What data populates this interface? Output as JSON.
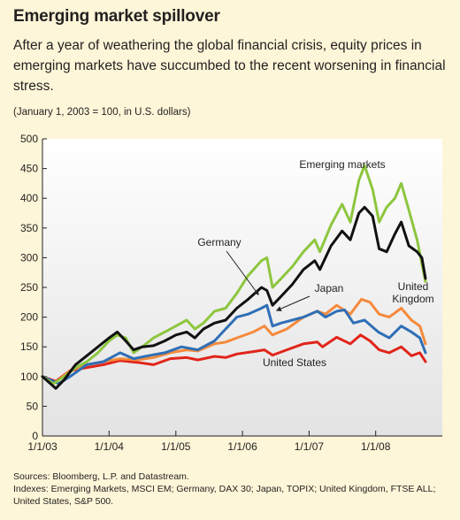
{
  "header": {
    "title": "Emerging market spillover",
    "subtitle": "After a year of weathering the global financial crisis, equity prices in emerging  markets have succumbed to the recent worsening in financial stress.",
    "unit_note": "(January 1, 2003 = 100, in U.S. dollars)"
  },
  "footer": {
    "sources": "Sources: Bloomberg, L.P. and Datastream.",
    "indexes": "Indexes: Emerging Markets, MSCI EM; Germany, DAX 30; Japan, TOPIX; United Kingdom, FTSE ALL; United States, S&P 500."
  },
  "colors": {
    "background": "#fdf6d8",
    "plot_background": "#e3e3e3",
    "emerging": "#8dc63f",
    "germany": "#111111",
    "japan": "#2f6fb6",
    "uk": "#f58a3c",
    "us": "#e1251b"
  },
  "chart_data": {
    "type": "line",
    "title": "Emerging market spillover",
    "xlabel": "",
    "ylabel": "",
    "ylim": [
      0,
      500
    ],
    "yticks": [
      0,
      50,
      100,
      150,
      200,
      250,
      300,
      350,
      400,
      450,
      500
    ],
    "xlim": [
      "2003-01-01",
      "2008-09-30"
    ],
    "xticks": [
      "1/1/03",
      "1/1/04",
      "1/1/05",
      "1/1/06",
      "1/1/07",
      "1/1/08"
    ],
    "grid": false,
    "legend": "inline labels",
    "series": [
      {
        "name": "Emerging markets",
        "label_lines": [
          "Emerging markets"
        ],
        "color_key": "emerging",
        "points": [
          [
            "2003-01-01",
            100
          ],
          [
            "2003-03-01",
            88
          ],
          [
            "2003-05-01",
            100
          ],
          [
            "2003-07-01",
            115
          ],
          [
            "2003-09-01",
            125
          ],
          [
            "2003-11-01",
            140
          ],
          [
            "2004-01-01",
            160
          ],
          [
            "2004-02-15",
            170
          ],
          [
            "2004-04-01",
            165
          ],
          [
            "2004-05-15",
            140
          ],
          [
            "2004-07-01",
            150
          ],
          [
            "2004-09-01",
            165
          ],
          [
            "2004-11-01",
            175
          ],
          [
            "2005-01-01",
            185
          ],
          [
            "2005-03-01",
            195
          ],
          [
            "2005-04-15",
            180
          ],
          [
            "2005-06-01",
            190
          ],
          [
            "2005-08-01",
            210
          ],
          [
            "2005-10-01",
            215
          ],
          [
            "2005-12-01",
            240
          ],
          [
            "2006-02-01",
            270
          ],
          [
            "2006-04-15",
            295
          ],
          [
            "2006-05-15",
            300
          ],
          [
            "2006-06-15",
            250
          ],
          [
            "2006-08-01",
            265
          ],
          [
            "2006-10-01",
            285
          ],
          [
            "2006-12-01",
            310
          ],
          [
            "2007-02-01",
            330
          ],
          [
            "2007-03-01",
            310
          ],
          [
            "2007-05-01",
            355
          ],
          [
            "2007-07-01",
            390
          ],
          [
            "2007-08-15",
            360
          ],
          [
            "2007-10-01",
            430
          ],
          [
            "2007-11-01",
            455
          ],
          [
            "2007-12-15",
            415
          ],
          [
            "2008-01-20",
            360
          ],
          [
            "2008-03-01",
            385
          ],
          [
            "2008-04-15",
            400
          ],
          [
            "2008-05-20",
            425
          ],
          [
            "2008-07-01",
            380
          ],
          [
            "2008-08-15",
            330
          ],
          [
            "2008-09-10",
            290
          ],
          [
            "2008-09-30",
            260
          ]
        ]
      },
      {
        "name": "Germany",
        "label_lines": [
          "Germany"
        ],
        "color_key": "germany",
        "points": [
          [
            "2003-01-01",
            100
          ],
          [
            "2003-03-15",
            80
          ],
          [
            "2003-05-01",
            95
          ],
          [
            "2003-07-01",
            120
          ],
          [
            "2003-09-01",
            135
          ],
          [
            "2003-11-01",
            150
          ],
          [
            "2004-01-01",
            165
          ],
          [
            "2004-02-15",
            175
          ],
          [
            "2004-04-01",
            160
          ],
          [
            "2004-05-15",
            145
          ],
          [
            "2004-07-01",
            150
          ],
          [
            "2004-09-01",
            152
          ],
          [
            "2004-11-01",
            160
          ],
          [
            "2005-01-01",
            170
          ],
          [
            "2005-03-01",
            175
          ],
          [
            "2005-04-15",
            165
          ],
          [
            "2005-06-01",
            180
          ],
          [
            "2005-08-01",
            190
          ],
          [
            "2005-10-01",
            195
          ],
          [
            "2005-12-01",
            215
          ],
          [
            "2006-02-01",
            230
          ],
          [
            "2006-04-15",
            250
          ],
          [
            "2006-05-15",
            245
          ],
          [
            "2006-06-15",
            220
          ],
          [
            "2006-08-01",
            235
          ],
          [
            "2006-10-01",
            255
          ],
          [
            "2006-12-01",
            280
          ],
          [
            "2007-02-01",
            295
          ],
          [
            "2007-03-01",
            280
          ],
          [
            "2007-05-01",
            320
          ],
          [
            "2007-07-01",
            345
          ],
          [
            "2007-08-15",
            330
          ],
          [
            "2007-10-01",
            375
          ],
          [
            "2007-11-01",
            385
          ],
          [
            "2007-12-15",
            370
          ],
          [
            "2008-01-20",
            315
          ],
          [
            "2008-03-01",
            310
          ],
          [
            "2008-04-15",
            340
          ],
          [
            "2008-05-20",
            360
          ],
          [
            "2008-07-01",
            320
          ],
          [
            "2008-08-15",
            310
          ],
          [
            "2008-09-10",
            300
          ],
          [
            "2008-09-30",
            265
          ]
        ]
      },
      {
        "name": "Japan",
        "label_lines": [
          "Japan"
        ],
        "color_key": "japan",
        "points": [
          [
            "2003-01-01",
            100
          ],
          [
            "2003-04-01",
            88
          ],
          [
            "2003-06-01",
            100
          ],
          [
            "2003-09-01",
            120
          ],
          [
            "2003-12-01",
            125
          ],
          [
            "2004-03-01",
            140
          ],
          [
            "2004-05-15",
            130
          ],
          [
            "2004-08-01",
            135
          ],
          [
            "2004-11-01",
            140
          ],
          [
            "2005-02-01",
            150
          ],
          [
            "2005-05-01",
            145
          ],
          [
            "2005-08-01",
            160
          ],
          [
            "2005-10-01",
            180
          ],
          [
            "2005-12-01",
            200
          ],
          [
            "2006-02-01",
            205
          ],
          [
            "2006-04-15",
            215
          ],
          [
            "2006-05-15",
            220
          ],
          [
            "2006-06-15",
            185
          ],
          [
            "2006-08-01",
            190
          ],
          [
            "2006-10-01",
            195
          ],
          [
            "2006-12-01",
            200
          ],
          [
            "2007-02-15",
            210
          ],
          [
            "2007-04-01",
            200
          ],
          [
            "2007-06-01",
            210
          ],
          [
            "2007-07-15",
            212
          ],
          [
            "2007-09-01",
            190
          ],
          [
            "2007-11-01",
            195
          ],
          [
            "2008-01-15",
            175
          ],
          [
            "2008-03-15",
            165
          ],
          [
            "2008-05-20",
            185
          ],
          [
            "2008-07-15",
            175
          ],
          [
            "2008-08-30",
            165
          ],
          [
            "2008-09-30",
            140
          ]
        ]
      },
      {
        "name": "United Kingdom",
        "label_lines": [
          "United",
          "Kingdom"
        ],
        "color_key": "uk",
        "points": [
          [
            "2003-01-01",
            100
          ],
          [
            "2003-03-15",
            90
          ],
          [
            "2003-06-01",
            110
          ],
          [
            "2003-09-01",
            120
          ],
          [
            "2003-12-01",
            125
          ],
          [
            "2004-03-01",
            130
          ],
          [
            "2004-06-01",
            128
          ],
          [
            "2004-09-01",
            132
          ],
          [
            "2004-12-01",
            140
          ],
          [
            "2005-03-01",
            145
          ],
          [
            "2005-05-01",
            143
          ],
          [
            "2005-08-01",
            155
          ],
          [
            "2005-10-01",
            158
          ],
          [
            "2005-12-01",
            165
          ],
          [
            "2006-03-01",
            175
          ],
          [
            "2006-05-01",
            185
          ],
          [
            "2006-06-15",
            170
          ],
          [
            "2006-09-01",
            180
          ],
          [
            "2006-12-01",
            200
          ],
          [
            "2007-02-15",
            210
          ],
          [
            "2007-04-01",
            205
          ],
          [
            "2007-06-01",
            220
          ],
          [
            "2007-08-15",
            205
          ],
          [
            "2007-10-15",
            230
          ],
          [
            "2007-12-01",
            225
          ],
          [
            "2008-01-20",
            205
          ],
          [
            "2008-03-15",
            200
          ],
          [
            "2008-05-20",
            215
          ],
          [
            "2008-07-15",
            195
          ],
          [
            "2008-08-30",
            185
          ],
          [
            "2008-09-30",
            155
          ]
        ]
      },
      {
        "name": "United States",
        "label_lines": [
          "United States"
        ],
        "color_key": "us",
        "points": [
          [
            "2003-01-01",
            100
          ],
          [
            "2003-03-15",
            92
          ],
          [
            "2003-06-01",
            110
          ],
          [
            "2003-09-01",
            115
          ],
          [
            "2003-12-01",
            120
          ],
          [
            "2004-03-01",
            127
          ],
          [
            "2004-06-01",
            124
          ],
          [
            "2004-09-01",
            120
          ],
          [
            "2004-12-01",
            130
          ],
          [
            "2005-03-01",
            132
          ],
          [
            "2005-05-01",
            128
          ],
          [
            "2005-08-01",
            134
          ],
          [
            "2005-10-01",
            132
          ],
          [
            "2005-12-01",
            138
          ],
          [
            "2006-03-01",
            142
          ],
          [
            "2006-05-01",
            145
          ],
          [
            "2006-06-15",
            136
          ],
          [
            "2006-09-01",
            145
          ],
          [
            "2006-12-01",
            155
          ],
          [
            "2007-02-15",
            158
          ],
          [
            "2007-03-15",
            150
          ],
          [
            "2007-06-01",
            166
          ],
          [
            "2007-08-15",
            155
          ],
          [
            "2007-10-10",
            170
          ],
          [
            "2007-12-01",
            160
          ],
          [
            "2008-01-20",
            145
          ],
          [
            "2008-03-15",
            140
          ],
          [
            "2008-05-20",
            150
          ],
          [
            "2008-07-15",
            135
          ],
          [
            "2008-08-30",
            140
          ],
          [
            "2008-09-30",
            125
          ]
        ]
      }
    ]
  }
}
